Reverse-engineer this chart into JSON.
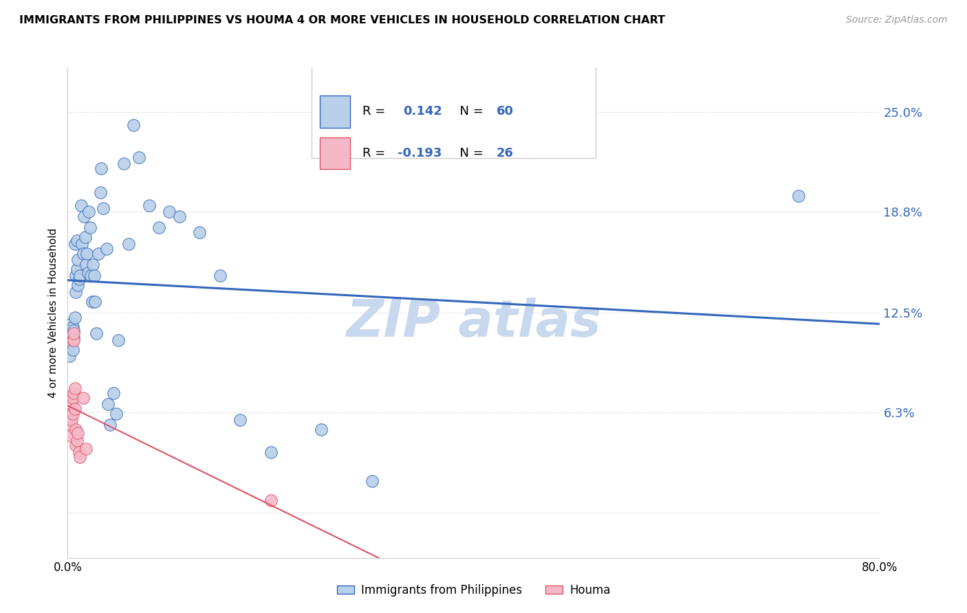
{
  "title": "IMMIGRANTS FROM PHILIPPINES VS HOUMA 4 OR MORE VEHICLES IN HOUSEHOLD CORRELATION CHART",
  "source": "Source: ZipAtlas.com",
  "ylabel": "4 or more Vehicles in Household",
  "r_blue": 0.142,
  "n_blue": 60,
  "r_pink": -0.193,
  "n_pink": 26,
  "blue_color": "#b8d0e8",
  "pink_color": "#f5b8c8",
  "line_blue": "#3366bb",
  "line_pink": "#dd5566",
  "watermark_color": "#c8d8ee",
  "legend_label_blue": "Immigrants from Philippines",
  "legend_label_pink": "Houma",
  "xlim": [
    0.0,
    0.8
  ],
  "ylim": [
    -0.028,
    0.278
  ],
  "ytick_vals": [
    0.0,
    0.063,
    0.125,
    0.188,
    0.25
  ],
  "ytick_labs": [
    "",
    "6.3%",
    "12.5%",
    "18.8%",
    "25.0%"
  ],
  "blue_x": [
    0.001,
    0.002,
    0.003,
    0.004,
    0.004,
    0.005,
    0.005,
    0.006,
    0.006,
    0.007,
    0.007,
    0.008,
    0.008,
    0.009,
    0.009,
    0.01,
    0.01,
    0.011,
    0.012,
    0.013,
    0.014,
    0.015,
    0.016,
    0.017,
    0.018,
    0.019,
    0.02,
    0.021,
    0.022,
    0.023,
    0.024,
    0.025,
    0.026,
    0.027,
    0.028,
    0.03,
    0.032,
    0.033,
    0.035,
    0.038,
    0.04,
    0.042,
    0.045,
    0.048,
    0.05,
    0.055,
    0.06,
    0.065,
    0.07,
    0.08,
    0.09,
    0.1,
    0.11,
    0.13,
    0.15,
    0.17,
    0.2,
    0.25,
    0.3,
    0.72
  ],
  "blue_y": [
    0.113,
    0.098,
    0.11,
    0.106,
    0.118,
    0.102,
    0.116,
    0.109,
    0.114,
    0.168,
    0.122,
    0.138,
    0.148,
    0.152,
    0.17,
    0.142,
    0.158,
    0.146,
    0.148,
    0.192,
    0.168,
    0.162,
    0.185,
    0.172,
    0.155,
    0.162,
    0.15,
    0.188,
    0.178,
    0.148,
    0.132,
    0.155,
    0.148,
    0.132,
    0.112,
    0.162,
    0.2,
    0.215,
    0.19,
    0.165,
    0.068,
    0.055,
    0.075,
    0.062,
    0.108,
    0.218,
    0.168,
    0.242,
    0.222,
    0.192,
    0.178,
    0.188,
    0.185,
    0.175,
    0.148,
    0.058,
    0.038,
    0.052,
    0.02,
    0.198
  ],
  "pink_x": [
    0.001,
    0.001,
    0.002,
    0.002,
    0.003,
    0.003,
    0.003,
    0.004,
    0.004,
    0.005,
    0.005,
    0.005,
    0.006,
    0.006,
    0.006,
    0.007,
    0.007,
    0.008,
    0.008,
    0.009,
    0.01,
    0.011,
    0.012,
    0.015,
    0.018,
    0.2
  ],
  "pink_y": [
    0.072,
    0.065,
    0.07,
    0.062,
    0.068,
    0.055,
    0.048,
    0.068,
    0.058,
    0.062,
    0.072,
    0.108,
    0.108,
    0.112,
    0.075,
    0.078,
    0.065,
    0.052,
    0.042,
    0.045,
    0.05,
    0.038,
    0.035,
    0.072,
    0.04,
    0.008
  ]
}
